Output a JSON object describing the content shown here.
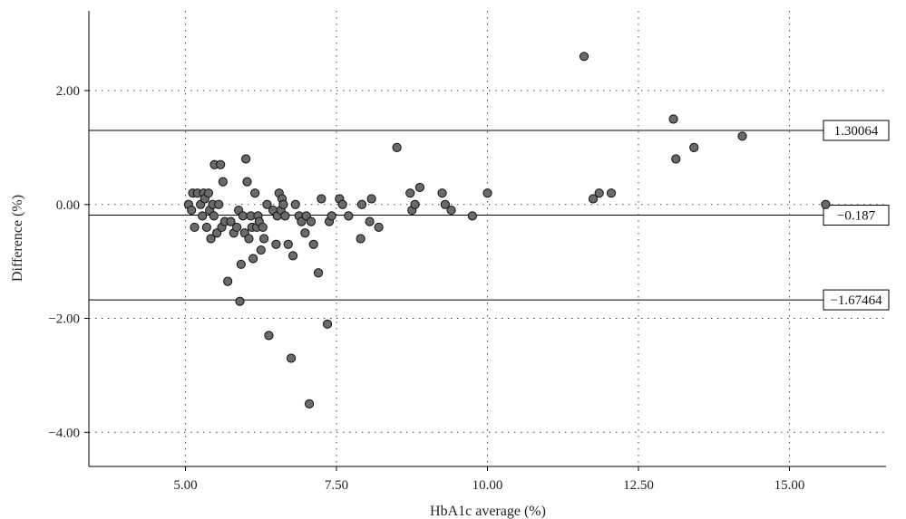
{
  "chart_data": {
    "type": "scatter",
    "xlabel": "HbA1c average (%)",
    "ylabel": "Difference (%)",
    "xlim": [
      3.4,
      16.6
    ],
    "ylim": [
      -4.6,
      3.4
    ],
    "x_ticks": [
      5.0,
      7.5,
      10.0,
      12.5,
      15.0
    ],
    "x_tick_labels": [
      "5.00",
      "7.50",
      "10.00",
      "12.50",
      "15.00"
    ],
    "y_ticks": [
      2.0,
      0.0,
      -2.0,
      -4.0
    ],
    "y_tick_labels": [
      "2.00",
      "0.00",
      "−2.00",
      "−4.00"
    ],
    "grid": "dotted",
    "reference_lines": [
      {
        "value": 1.30064,
        "label": "1.30064"
      },
      {
        "value": -0.187,
        "label": "−0.187"
      },
      {
        "value": -1.67464,
        "label": "−1.67464"
      }
    ],
    "points": [
      [
        5.05,
        0.0
      ],
      [
        5.1,
        -0.1
      ],
      [
        5.12,
        0.2
      ],
      [
        5.15,
        -0.4
      ],
      [
        5.2,
        0.2
      ],
      [
        5.25,
        0.0
      ],
      [
        5.28,
        -0.2
      ],
      [
        5.3,
        0.2
      ],
      [
        5.32,
        0.1
      ],
      [
        5.35,
        -0.4
      ],
      [
        5.38,
        0.2
      ],
      [
        5.4,
        -0.1
      ],
      [
        5.42,
        -0.6
      ],
      [
        5.45,
        0.0
      ],
      [
        5.47,
        -0.2
      ],
      [
        5.48,
        0.7
      ],
      [
        5.52,
        -0.5
      ],
      [
        5.55,
        0.0
      ],
      [
        5.58,
        0.7
      ],
      [
        5.6,
        -0.4
      ],
      [
        5.62,
        0.4
      ],
      [
        5.65,
        -0.3
      ],
      [
        5.7,
        -1.35
      ],
      [
        5.75,
        -0.3
      ],
      [
        5.8,
        -0.5
      ],
      [
        5.85,
        -0.4
      ],
      [
        5.88,
        -0.1
      ],
      [
        5.9,
        -1.7
      ],
      [
        5.92,
        -1.05
      ],
      [
        5.95,
        -0.2
      ],
      [
        5.98,
        -0.5
      ],
      [
        6.0,
        0.8
      ],
      [
        6.02,
        0.4
      ],
      [
        6.05,
        -0.6
      ],
      [
        6.08,
        -0.2
      ],
      [
        6.1,
        -0.4
      ],
      [
        6.12,
        -0.95
      ],
      [
        6.15,
        0.2
      ],
      [
        6.18,
        -0.4
      ],
      [
        6.2,
        -0.2
      ],
      [
        6.22,
        -0.3
      ],
      [
        6.25,
        -0.8
      ],
      [
        6.28,
        -0.4
      ],
      [
        6.3,
        -0.6
      ],
      [
        6.35,
        0.0
      ],
      [
        6.38,
        -2.3
      ],
      [
        6.45,
        -0.1
      ],
      [
        6.5,
        -0.7
      ],
      [
        6.52,
        -0.2
      ],
      [
        6.55,
        0.2
      ],
      [
        6.58,
        -0.1
      ],
      [
        6.6,
        0.1
      ],
      [
        6.62,
        0.0
      ],
      [
        6.65,
        -0.2
      ],
      [
        6.7,
        -0.7
      ],
      [
        6.75,
        -2.7
      ],
      [
        6.78,
        -0.9
      ],
      [
        6.82,
        0.0
      ],
      [
        6.88,
        -0.2
      ],
      [
        6.92,
        -0.3
      ],
      [
        6.98,
        -0.5
      ],
      [
        7.0,
        -0.2
      ],
      [
        7.05,
        -3.5
      ],
      [
        7.08,
        -0.3
      ],
      [
        7.12,
        -0.7
      ],
      [
        7.2,
        -1.2
      ],
      [
        7.25,
        0.1
      ],
      [
        7.35,
        -2.1
      ],
      [
        7.38,
        -0.3
      ],
      [
        7.42,
        -0.2
      ],
      [
        7.55,
        0.1
      ],
      [
        7.6,
        0.0
      ],
      [
        7.7,
        -0.2
      ],
      [
        7.9,
        -0.6
      ],
      [
        7.92,
        0.0
      ],
      [
        8.05,
        -0.3
      ],
      [
        8.08,
        0.1
      ],
      [
        8.2,
        -0.4
      ],
      [
        8.5,
        1.0
      ],
      [
        8.72,
        0.2
      ],
      [
        8.75,
        -0.1
      ],
      [
        8.8,
        0.0
      ],
      [
        8.88,
        0.3
      ],
      [
        9.25,
        0.2
      ],
      [
        9.3,
        0.0
      ],
      [
        9.4,
        -0.1
      ],
      [
        9.75,
        -0.2
      ],
      [
        10.0,
        0.2
      ],
      [
        11.6,
        2.6
      ],
      [
        11.75,
        0.1
      ],
      [
        11.85,
        0.2
      ],
      [
        12.05,
        0.2
      ],
      [
        13.08,
        1.5
      ],
      [
        13.12,
        0.8
      ],
      [
        13.42,
        1.0
      ],
      [
        14.22,
        1.2
      ],
      [
        15.6,
        0.0
      ]
    ]
  }
}
